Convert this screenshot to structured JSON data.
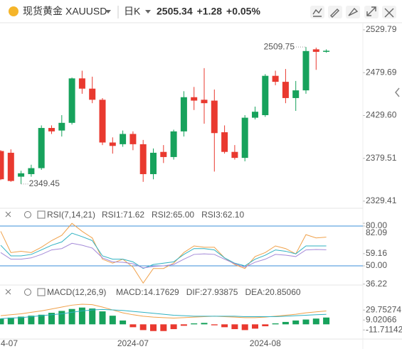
{
  "header": {
    "symbol_name": "现货黄金",
    "symbol": "XAUUSD",
    "period": "日K",
    "price": "2505.34",
    "change": "+1.28",
    "change_pct": "+0.05%"
  },
  "chart_data": [
    {
      "type": "candlestick",
      "ylim": [
        2321.9,
        2538.1
      ],
      "yticks": [
        2329.41,
        2379.51,
        {
          "value": 2429.6,
          "label": "2429.60"
        },
        2479.69,
        2529.79
      ],
      "up_color": "#17a25c",
      "down_color": "#e9392f",
      "categories": [
        "4-07",
        null,
        null,
        null,
        null,
        null,
        null,
        null,
        null,
        null,
        null,
        null,
        null,
        "2024-07",
        null,
        null,
        null,
        null,
        null,
        null,
        null,
        null,
        null,
        null,
        null,
        null,
        "2024-08",
        null,
        null,
        null,
        null,
        null,
        null
      ],
      "candles": [
        {
          "o": 2388,
          "h": 2389,
          "l": 2354,
          "c": 2355
        },
        {
          "o": 2386,
          "h": 2390,
          "l": 2352,
          "c": 2353
        },
        {
          "o": 2358,
          "h": 2365,
          "l": 2349.45,
          "c": 2362
        },
        {
          "o": 2361,
          "h": 2372,
          "l": 2358,
          "c": 2368
        },
        {
          "o": 2368,
          "h": 2418,
          "l": 2366,
          "c": 2415
        },
        {
          "o": 2415,
          "h": 2418,
          "l": 2408,
          "c": 2411
        },
        {
          "o": 2412,
          "h": 2430,
          "l": 2405,
          "c": 2421
        },
        {
          "o": 2421,
          "h": 2474,
          "l": 2419,
          "c": 2473
        },
        {
          "o": 2473,
          "h": 2482,
          "l": 2455,
          "c": 2461
        },
        {
          "o": 2461,
          "h": 2475,
          "l": 2444,
          "c": 2448
        },
        {
          "o": 2448,
          "h": 2450,
          "l": 2395,
          "c": 2398
        },
        {
          "o": 2398,
          "h": 2404,
          "l": 2385,
          "c": 2394
        },
        {
          "o": 2396,
          "h": 2412,
          "l": 2393,
          "c": 2408
        },
        {
          "o": 2408,
          "h": 2411,
          "l": 2389,
          "c": 2396
        },
        {
          "o": 2396,
          "h": 2401,
          "l": 2352,
          "c": 2361
        },
        {
          "o": 2361,
          "h": 2391,
          "l": 2355,
          "c": 2386
        },
        {
          "o": 2387,
          "h": 2395,
          "l": 2374,
          "c": 2381
        },
        {
          "o": 2381,
          "h": 2413,
          "l": 2378,
          "c": 2411
        },
        {
          "o": 2411,
          "h": 2458,
          "l": 2405,
          "c": 2451
        },
        {
          "o": 2451,
          "h": 2463,
          "l": 2436,
          "c": 2447
        },
        {
          "o": 2448,
          "h": 2485,
          "l": 2420,
          "c": 2444
        },
        {
          "o": 2447,
          "h": 2460,
          "l": 2364,
          "c": 2409
        },
        {
          "o": 2410,
          "h": 2418,
          "l": 2385,
          "c": 2387
        },
        {
          "o": 2387,
          "h": 2395,
          "l": 2378,
          "c": 2380
        },
        {
          "o": 2380,
          "h": 2430,
          "l": 2376,
          "c": 2427
        },
        {
          "o": 2427,
          "h": 2440,
          "l": 2425,
          "c": 2434
        },
        {
          "o": 2430,
          "h": 2478,
          "l": 2428,
          "c": 2476
        },
        {
          "o": 2476,
          "h": 2482,
          "l": 2465,
          "c": 2469
        },
        {
          "o": 2469,
          "h": 2484,
          "l": 2444,
          "c": 2450
        },
        {
          "o": 2450,
          "h": 2470,
          "l": 2435,
          "c": 2459
        },
        {
          "o": 2459,
          "h": 2509.75,
          "l": 2455,
          "c": 2505
        },
        {
          "o": 2507,
          "h": 2509,
          "l": 2483,
          "c": 2504.06
        },
        {
          "o": 2504.06,
          "h": 2507,
          "l": 2503,
          "c": 2505.34
        }
      ]
    },
    {
      "type": "line",
      "title": "RSI(7,14,21)",
      "ylim": [
        36.07,
        83.2
      ],
      "yticks": [
        36.22,
        {
          "value": 50,
          "label": "50.00"
        },
        59.16,
        {
          "value": 80,
          "label": "80.00"
        },
        82.09
      ],
      "lines": [
        80,
        50
      ],
      "line_color": "#3b8fd9",
      "series": [
        {
          "name": "RSI1:",
          "legend_value": "71.62",
          "color": "#f0a14a",
          "values": [
            76,
            60,
            61,
            60,
            64,
            69,
            73,
            82,
            76,
            71,
            55,
            52,
            55,
            49,
            37,
            48,
            48,
            52,
            60,
            65,
            64,
            64,
            56,
            51,
            48,
            57,
            60,
            65,
            63,
            59,
            73.5,
            71,
            71.62
          ]
        },
        {
          "name": "RSI2:",
          "legend_value": "65.00",
          "color": "#2fb2c2",
          "values": [
            65.5,
            57.5,
            57.5,
            58.6,
            62,
            65.5,
            68,
            74.6,
            72,
            69,
            57.5,
            55,
            55,
            53,
            48,
            51,
            52,
            53,
            58.6,
            63,
            63,
            62,
            56,
            52,
            50,
            55,
            58,
            62,
            61,
            59,
            65,
            65,
            65
          ]
        },
        {
          "name": "RSI3:",
          "legend_value": "62.10",
          "color": "#a48ad8",
          "values": [
            60,
            55,
            55,
            56,
            58.6,
            62,
            63,
            67,
            65.5,
            63.4,
            56,
            53,
            52.7,
            51.6,
            48.4,
            49.5,
            50,
            51,
            55,
            58.6,
            59,
            58.6,
            55,
            51.6,
            49,
            52.7,
            55,
            58.6,
            58,
            57,
            62,
            62.3,
            62.1
          ]
        }
      ]
    },
    {
      "type": "macd",
      "title": "MACD(12,26,9)",
      "ylim": [
        -29.2,
        53.8
      ],
      "yticks": [
        -11.71142,
        9.02066,
        29.75274
      ],
      "up_color": "#17a25c",
      "down_color": "#e9392f",
      "histogram": {
        "name": "MACD:",
        "legend_value": "14.17629",
        "color": "#f27fa0",
        "values": [
          12,
          14,
          16,
          18,
          20,
          24,
          28,
          32,
          35,
          33,
          27,
          18,
          8,
          -6,
          -12,
          -14,
          -14,
          -10,
          -3,
          2,
          3,
          -2,
          -6,
          -10,
          -12,
          -9,
          -4,
          2,
          5,
          8,
          10,
          12,
          14.17629
        ]
      },
      "series": [
        {
          "name": "DIF:",
          "legend_value": "27.93875",
          "color": "#f0a14a",
          "values": [
            18,
            20,
            22,
            25,
            28,
            32,
            36,
            40,
            42,
            41,
            36,
            30,
            24,
            20,
            17,
            15,
            14,
            13,
            14,
            15,
            16,
            17,
            16,
            15,
            14,
            14,
            15,
            17,
            19,
            21,
            24,
            26,
            27.93875
          ]
        },
        {
          "name": "DEA:",
          "legend_value": "20.85060",
          "color": "#2fb2c2",
          "values": [
            12,
            13,
            14,
            16,
            18,
            20,
            22,
            25,
            28,
            30,
            31,
            30,
            29,
            27,
            25,
            23,
            21,
            19,
            18,
            17,
            17,
            17,
            17,
            17,
            16,
            16,
            16,
            16,
            17,
            18,
            19,
            20,
            20.8506
          ]
        }
      ]
    }
  ]
}
